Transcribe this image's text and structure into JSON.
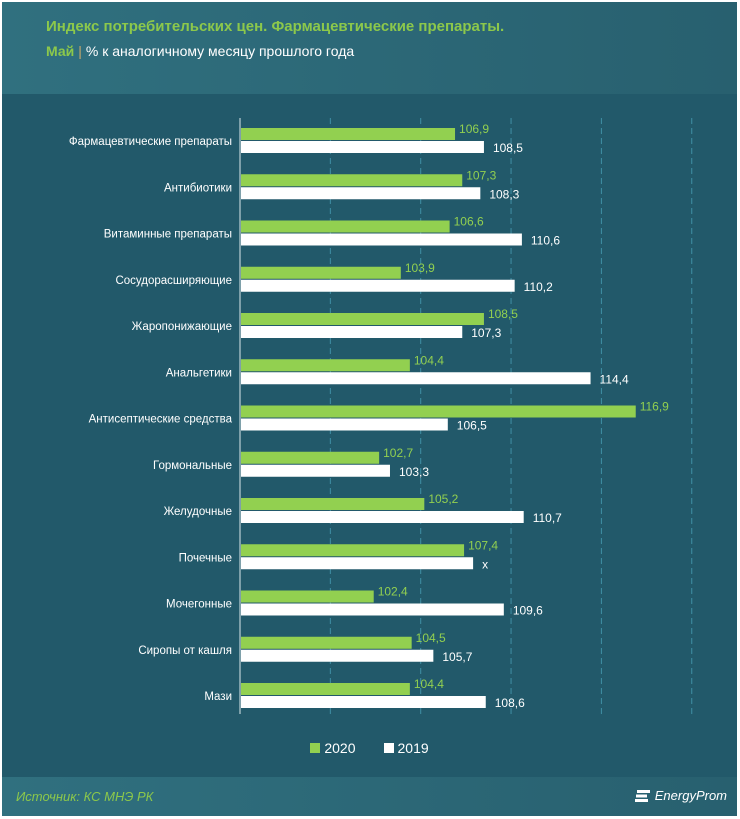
{
  "header": {
    "title": "Индекс потребительских цен. Фармацевтические препараты.",
    "subtitle_highlight": "Май",
    "subtitle_sep": "|",
    "subtitle_rest": "% к аналогичному месяцу прошлого года"
  },
  "footer": {
    "source": "Источник: КС МНЭ РК",
    "logo": "EnergyProm"
  },
  "colors": {
    "2020": "#92d050",
    "2019": "#ffffff",
    "background": "#22596a"
  },
  "chart_data": {
    "type": "bar",
    "orientation": "horizontal",
    "title": "Индекс потребительских цен. Фармацевтические препараты.",
    "subtitle": "Май | % к аналогичному месяцу прошлого года",
    "xlim": [
      95,
      120
    ],
    "grid": true,
    "legend_position": "bottom",
    "categories": [
      "Фармацевтические препараты",
      "Антибиотики",
      "Витаминные препараты",
      "Сосудорасширяющие",
      "Жаропонижающие",
      "Анальгетики",
      "Антисептические средства",
      "Гормональные",
      "Желудочные",
      "Почечные",
      "Мочегонные",
      "Сиропы от кашля",
      "Мази"
    ],
    "series": [
      {
        "name": "2020",
        "values": [
          106.9,
          107.3,
          106.6,
          103.9,
          108.5,
          104.4,
          116.9,
          102.7,
          105.2,
          107.4,
          102.4,
          104.5,
          104.4
        ],
        "labels": [
          "106,9",
          "107,3",
          "106,6",
          "103,9",
          "108,5",
          "104,4",
          "116,9",
          "102,7",
          "105,2",
          "107,4",
          "102,4",
          "104,5",
          "104,4"
        ]
      },
      {
        "name": "2019",
        "values": [
          108.5,
          108.3,
          110.6,
          110.2,
          107.3,
          114.4,
          106.5,
          103.3,
          110.7,
          107.9,
          109.6,
          105.7,
          108.6
        ],
        "labels": [
          "108,5",
          "108,3",
          "110,6",
          "110,2",
          "107,3",
          "114,4",
          "106,5",
          "103,3",
          "110,7",
          "x",
          "109,6",
          "105,7",
          "108,6"
        ]
      }
    ]
  }
}
